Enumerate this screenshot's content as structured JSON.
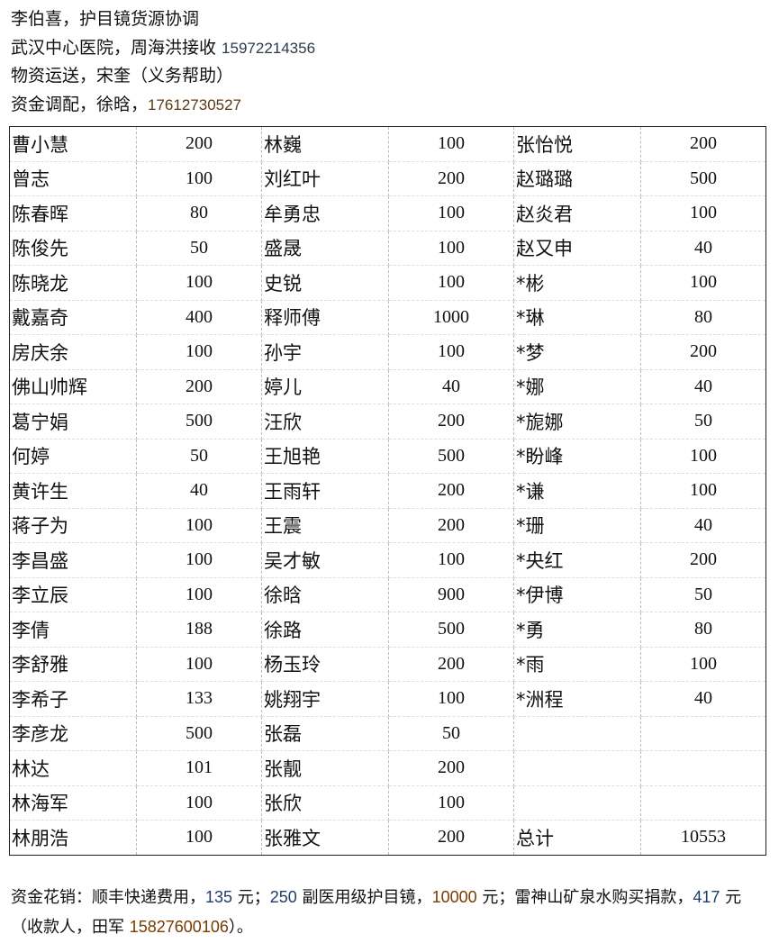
{
  "header": {
    "line1": "李伯喜，护目镜货源协调",
    "line2_text": "武汉中心医院，周海洪接收 ",
    "line2_phone": "15972214356",
    "line3": "物资运送，宋奎（义务帮助）",
    "line4_text": "资金调配，徐晗，",
    "line4_phone": "17612730527"
  },
  "table": {
    "rows": [
      [
        "曹小慧",
        "200",
        "林巍",
        "100",
        "张怡悦",
        "200"
      ],
      [
        "曾志",
        "100",
        "刘红叶",
        "200",
        "赵璐璐",
        "500"
      ],
      [
        "陈春晖",
        "80",
        "牟勇忠",
        "100",
        "赵炎君",
        "100"
      ],
      [
        "陈俊先",
        "50",
        "盛晟",
        "100",
        "赵又申",
        "40"
      ],
      [
        "陈晓龙",
        "100",
        "史锐",
        "100",
        "*彬",
        "100"
      ],
      [
        "戴嘉奇",
        "400",
        "释师傅",
        "1000",
        "*琳",
        "80"
      ],
      [
        "房庆余",
        "100",
        "孙宇",
        "100",
        "*梦",
        "200"
      ],
      [
        "佛山帅辉",
        "200",
        "婷儿",
        "40",
        "*娜",
        "40"
      ],
      [
        "葛宁娟",
        "500",
        "汪欣",
        "200",
        "*旎娜",
        "50"
      ],
      [
        "何婷",
        "50",
        "王旭艳",
        "500",
        "*盼峰",
        "100"
      ],
      [
        "黄许生",
        "40",
        "王雨轩",
        "200",
        "*谦",
        "100"
      ],
      [
        "蒋子为",
        "100",
        "王震",
        "200",
        "*珊",
        "40"
      ],
      [
        "李昌盛",
        "100",
        "吴才敏",
        "100",
        "*央红",
        "200"
      ],
      [
        "李立辰",
        "100",
        "徐晗",
        "900",
        "*伊博",
        "50"
      ],
      [
        "李倩",
        "188",
        "徐路",
        "500",
        "*勇",
        "80"
      ],
      [
        "李舒雅",
        "100",
        "杨玉玲",
        "200",
        "*雨",
        "100"
      ],
      [
        "李希子",
        "133",
        "姚翔宇",
        "100",
        "*洲程",
        "40"
      ],
      [
        "李彦龙",
        "500",
        "张磊",
        "50",
        "",
        ""
      ],
      [
        "林达",
        "101",
        "张靓",
        "200",
        "",
        ""
      ],
      [
        "林海军",
        "100",
        "张欣",
        "100",
        "",
        ""
      ],
      [
        "林朋浩",
        "100",
        "张雅文",
        "200",
        "总计",
        "10553"
      ]
    ]
  },
  "footer": {
    "t1": "资金花销：顺丰快递费用，",
    "n1": "135",
    "t2": " 元；",
    "n2": "250",
    "t3": " 副医用级护目镜，",
    "n3": "10000",
    "t4": " 元；雷神山矿泉水购买捐款，",
    "n4": "417",
    "t5": " 元（收款人，田军 ",
    "n5": "15827600106",
    "t6": "）。"
  }
}
